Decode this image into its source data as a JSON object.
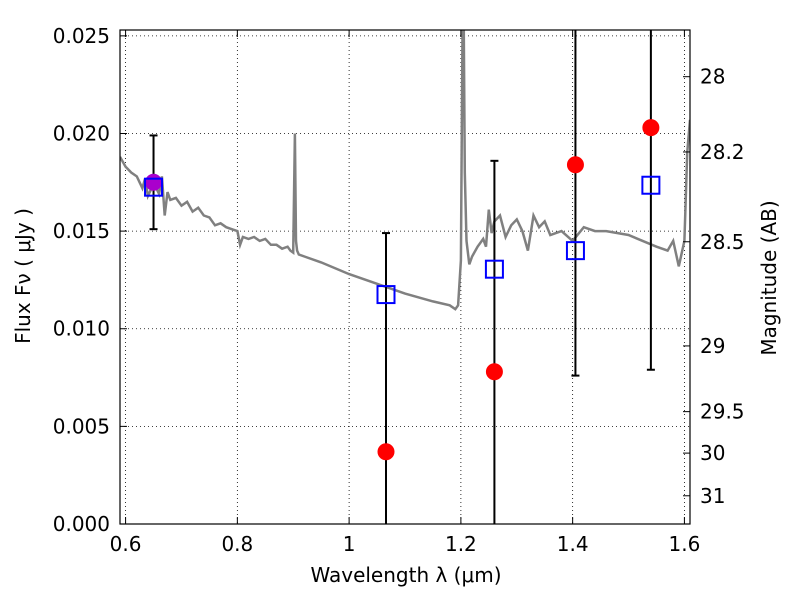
{
  "chart_data": {
    "type": "scatter",
    "xlabel": "Wavelength  λ (μm)",
    "ylabel_left": "Flux  Fν  ( μJy )",
    "ylabel_right": "Magnitude (AB)",
    "xlim": [
      0.59,
      1.61
    ],
    "ylim": [
      0.0,
      0.0253
    ],
    "grid": true,
    "x_ticks": [
      0.6,
      0.8,
      1.0,
      1.2,
      1.4,
      1.6
    ],
    "x_tick_labels": [
      "0.6",
      "0.8",
      "1",
      "1.2",
      "1.4",
      "1.6"
    ],
    "y_ticks": [
      0.0,
      0.005,
      0.01,
      0.015,
      0.02,
      0.025
    ],
    "y_tick_labels": [
      "0.000",
      "0.005",
      "0.010",
      "0.015",
      "0.020",
      "0.025"
    ],
    "mag_ticks": [
      {
        "label": "28",
        "mag": 28.0
      },
      {
        "label": "28.2",
        "mag": 28.2
      },
      {
        "label": "28.5",
        "mag": 28.5
      },
      {
        "label": "29",
        "mag": 29.0
      },
      {
        "label": "29.5",
        "mag": 29.5
      },
      {
        "label": "30",
        "mag": 30.0
      },
      {
        "label": "31",
        "mag": 31.0
      }
    ],
    "series": [
      {
        "kind": "template",
        "color": "#808080",
        "x": [
          0.59,
          0.6,
          0.61,
          0.62,
          0.625,
          0.63,
          0.635,
          0.64,
          0.645,
          0.65,
          0.655,
          0.66,
          0.665,
          0.67,
          0.675,
          0.68,
          0.69,
          0.7,
          0.71,
          0.72,
          0.73,
          0.74,
          0.75,
          0.76,
          0.77,
          0.78,
          0.79,
          0.8,
          0.805,
          0.81,
          0.82,
          0.83,
          0.84,
          0.85,
          0.86,
          0.87,
          0.88,
          0.89,
          0.895,
          0.9,
          0.903,
          0.905,
          0.907,
          0.91,
          0.92,
          0.95,
          1.0,
          1.05,
          1.1,
          1.15,
          1.18,
          1.19,
          1.195,
          1.2,
          1.203,
          1.205,
          1.207,
          1.21,
          1.215,
          1.22,
          1.23,
          1.24,
          1.245,
          1.25,
          1.255,
          1.26,
          1.27,
          1.28,
          1.29,
          1.3,
          1.31,
          1.32,
          1.33,
          1.34,
          1.35,
          1.36,
          1.38,
          1.4,
          1.42,
          1.44,
          1.46,
          1.5,
          1.55,
          1.57,
          1.58,
          1.59,
          1.6,
          1.605,
          1.61
        ],
        "y": [
          0.0188,
          0.0183,
          0.018,
          0.0178,
          0.0175,
          0.0172,
          0.0177,
          0.0168,
          0.0171,
          0.0175,
          0.0172,
          0.0169,
          0.0178,
          0.0158,
          0.017,
          0.0166,
          0.0167,
          0.0163,
          0.0165,
          0.016,
          0.0162,
          0.0158,
          0.0157,
          0.0153,
          0.0154,
          0.0152,
          0.0151,
          0.015,
          0.0143,
          0.0147,
          0.0146,
          0.0147,
          0.0145,
          0.0146,
          0.0143,
          0.0143,
          0.0141,
          0.0142,
          0.014,
          0.0139,
          0.02,
          0.0145,
          0.014,
          0.0138,
          0.0137,
          0.0134,
          0.0128,
          0.0123,
          0.0118,
          0.0114,
          0.0112,
          0.011,
          0.0112,
          0.0135,
          0.026,
          0.026,
          0.018,
          0.0145,
          0.0133,
          0.0137,
          0.0142,
          0.0146,
          0.0142,
          0.0161,
          0.0149,
          0.0155,
          0.0158,
          0.0147,
          0.0153,
          0.0156,
          0.015,
          0.014,
          0.0158,
          0.0152,
          0.0155,
          0.0148,
          0.015,
          0.0145,
          0.0152,
          0.015,
          0.015,
          0.0148,
          0.0142,
          0.014,
          0.0145,
          0.0132,
          0.0145,
          0.019,
          0.0207
        ]
      },
      {
        "kind": "model-photometry",
        "marker": "open-square",
        "color": "#0000ff",
        "x": [
          0.65,
          1.066,
          1.26,
          1.405,
          1.54
        ],
        "y": [
          0.01725,
          0.01175,
          0.01305,
          0.014,
          0.01735
        ]
      },
      {
        "kind": "observed-photometry",
        "marker": "filled-circle",
        "color": "#ff0000",
        "x": [
          0.65,
          1.066,
          1.26,
          1.405,
          1.54
        ],
        "y": [
          0.0175,
          0.0037,
          0.0078,
          0.0184,
          0.0203
        ],
        "yerr_low": [
          0.0151,
          0.0,
          0.0,
          0.0076,
          0.0079
        ],
        "yerr_high": [
          0.0199,
          0.0149,
          0.0186,
          0.0253,
          0.0253
        ],
        "first_point_color": "#aa00cc"
      }
    ]
  }
}
